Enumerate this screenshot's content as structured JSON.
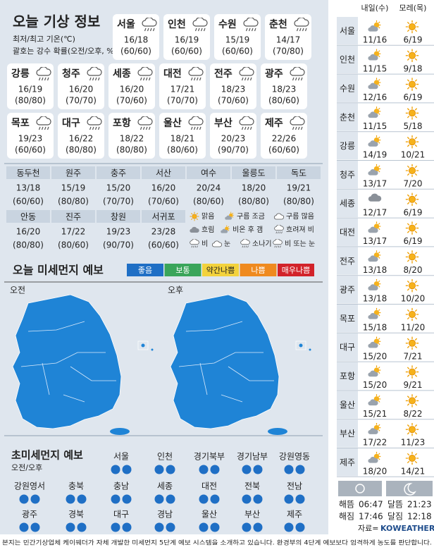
{
  "header": {
    "title": "오늘 기상 정보",
    "notes": [
      "최저/최고 기온(℃)",
      "괄호는 강수 확률(오전/오후, %)"
    ]
  },
  "cities": [
    {
      "name": "서울",
      "temp": "16/18",
      "rain": "(60/60)"
    },
    {
      "name": "인천",
      "temp": "16/19",
      "rain": "(60/60)"
    },
    {
      "name": "수원",
      "temp": "15/19",
      "rain": "(60/60)"
    },
    {
      "name": "춘천",
      "temp": "14/17",
      "rain": "(70/80)"
    },
    {
      "name": "강릉",
      "temp": "16/19",
      "rain": "(80/80)"
    },
    {
      "name": "청주",
      "temp": "16/20",
      "rain": "(70/70)"
    },
    {
      "name": "세종",
      "temp": "16/20",
      "rain": "(70/60)"
    },
    {
      "name": "대전",
      "temp": "17/21",
      "rain": "(70/70)"
    },
    {
      "name": "전주",
      "temp": "18/23",
      "rain": "(70/60)"
    },
    {
      "name": "광주",
      "temp": "18/23",
      "rain": "(80/60)"
    },
    {
      "name": "목포",
      "temp": "19/23",
      "rain": "(60/60)"
    },
    {
      "name": "대구",
      "temp": "16/22",
      "rain": "(80/80)"
    },
    {
      "name": "포항",
      "temp": "18/22",
      "rain": "(80/80)"
    },
    {
      "name": "울산",
      "temp": "18/21",
      "rain": "(80/60)"
    },
    {
      "name": "부산",
      "temp": "20/23",
      "rain": "(90/70)"
    },
    {
      "name": "제주",
      "temp": "22/26",
      "rain": "(60/60)"
    }
  ],
  "small_cities": [
    {
      "name": "동두천",
      "temp": "13/18",
      "rain": "(60/60)"
    },
    {
      "name": "원주",
      "temp": "15/19",
      "rain": "(80/80)"
    },
    {
      "name": "충주",
      "temp": "15/20",
      "rain": "(70/70)"
    },
    {
      "name": "서산",
      "temp": "16/20",
      "rain": "(70/60)"
    },
    {
      "name": "여수",
      "temp": "20/24",
      "rain": "(80/60)"
    },
    {
      "name": "울릉도",
      "temp": "18/20",
      "rain": "(80/80)"
    },
    {
      "name": "독도",
      "temp": "19/21",
      "rain": "(80/80)"
    },
    {
      "name": "안동",
      "temp": "16/20",
      "rain": "(80/80)"
    },
    {
      "name": "진주",
      "temp": "17/22",
      "rain": "(80/60)"
    },
    {
      "name": "창원",
      "temp": "19/23",
      "rain": "(90/70)"
    },
    {
      "name": "서귀포",
      "temp": "23/28",
      "rain": "(60/60)"
    }
  ],
  "legend": [
    "맑음",
    "구름 조금",
    "구름 많음",
    "흐림",
    "비온 후 갬",
    "흐려져 비",
    "비",
    "눈",
    "소나기",
    "비 또는 눈"
  ],
  "dust": {
    "title": "오늘 미세먼지 예보",
    "levels": [
      {
        "label": "좋음",
        "color": "#1f6fc5"
      },
      {
        "label": "보통",
        "color": "#3aa55a"
      },
      {
        "label": "약간나쁨",
        "color": "#f3d23c"
      },
      {
        "label": "나쁨",
        "color": "#ef8a1f"
      },
      {
        "label": "매우나쁨",
        "color": "#d2232a"
      }
    ],
    "am": "오전",
    "pm": "오후",
    "map_color": "#1f84d6"
  },
  "fine_dust": {
    "title": "초미세먼지 예보",
    "subtitle": "오전/오후",
    "regions": [
      {
        "name": "서울",
        "colors": [
          "#1f6fc5",
          "#1f6fc5"
        ]
      },
      {
        "name": "인천",
        "colors": [
          "#1f6fc5",
          "#1f6fc5"
        ]
      },
      {
        "name": "경기북부",
        "colors": [
          "#1f6fc5",
          "#1f6fc5"
        ]
      },
      {
        "name": "경기남부",
        "colors": [
          "#1f6fc5",
          "#1f6fc5"
        ]
      },
      {
        "name": "강원영동",
        "colors": [
          "#1f6fc5",
          "#1f6fc5"
        ]
      },
      {
        "name": "강원영서",
        "colors": [
          "#1f6fc5",
          "#1f6fc5"
        ]
      },
      {
        "name": "충북",
        "colors": [
          "#1f6fc5",
          "#1f6fc5"
        ]
      },
      {
        "name": "충남",
        "colors": [
          "#1f6fc5",
          "#1f6fc5"
        ]
      },
      {
        "name": "세종",
        "colors": [
          "#1f6fc5",
          "#1f6fc5"
        ]
      },
      {
        "name": "대전",
        "colors": [
          "#1f6fc5",
          "#1f6fc5"
        ]
      },
      {
        "name": "전북",
        "colors": [
          "#1f6fc5",
          "#1f6fc5"
        ]
      },
      {
        "name": "전남",
        "colors": [
          "#1f6fc5",
          "#1f6fc5"
        ]
      },
      {
        "name": "광주",
        "colors": [
          "#1f6fc5",
          "#1f6fc5"
        ]
      },
      {
        "name": "경북",
        "colors": [
          "#1f6fc5",
          "#1f6fc5"
        ]
      },
      {
        "name": "대구",
        "colors": [
          "#1f6fc5",
          "#1f6fc5"
        ]
      },
      {
        "name": "경남",
        "colors": [
          "#1f6fc5",
          "#1f6fc5"
        ]
      },
      {
        "name": "울산",
        "colors": [
          "#1f6fc5",
          "#1f6fc5"
        ]
      },
      {
        "name": "부산",
        "colors": [
          "#1f6fc5",
          "#1f6fc5"
        ]
      },
      {
        "name": "제주",
        "colors": [
          "#1f6fc5",
          "#1f6fc5"
        ]
      }
    ]
  },
  "outlook": {
    "headers": [
      "내일(수)",
      "모레(목)"
    ],
    "rows": [
      {
        "name": "서울",
        "day1": "11/16",
        "day2": "6/19"
      },
      {
        "name": "인천",
        "day1": "11/15",
        "day2": "9/18"
      },
      {
        "name": "수원",
        "day1": "12/16",
        "day2": "6/19"
      },
      {
        "name": "춘천",
        "day1": "11/15",
        "day2": "5/18"
      },
      {
        "name": "강릉",
        "day1": "14/19",
        "day2": "10/21"
      },
      {
        "name": "청주",
        "day1": "13/17",
        "day2": "7/20"
      },
      {
        "name": "세종",
        "day1": "12/17",
        "day2": "6/19"
      },
      {
        "name": "대전",
        "day1": "13/17",
        "day2": "6/19"
      },
      {
        "name": "전주",
        "day1": "13/18",
        "day2": "8/20"
      },
      {
        "name": "광주",
        "day1": "13/18",
        "day2": "10/20"
      },
      {
        "name": "목포",
        "day1": "15/18",
        "day2": "11/20"
      },
      {
        "name": "대구",
        "day1": "15/20",
        "day2": "7/21"
      },
      {
        "name": "포항",
        "day1": "15/20",
        "day2": "9/21"
      },
      {
        "name": "울산",
        "day1": "15/21",
        "day2": "8/22"
      },
      {
        "name": "부산",
        "day1": "17/22",
        "day2": "11/23"
      },
      {
        "name": "제주",
        "day1": "18/20",
        "day2": "14/21"
      }
    ]
  },
  "sun_moon": [
    {
      "label": "해뜸",
      "time": "06:47"
    },
    {
      "label": "해짐",
      "time": "17:46"
    },
    {
      "label": "달뜸",
      "time": "21:23"
    },
    {
      "label": "달짐",
      "time": "12:18"
    }
  ],
  "source": {
    "label": "자료=",
    "brand": "KOWEATHER"
  },
  "footer": "본지는 민간기상업체 케이웨더가 자체 개발한 미세먼지 5단계 예보 시스템을 소개하고 있습니다. 환경부의 4단계 예보보다 엄격하게 농도를 판단합니다."
}
